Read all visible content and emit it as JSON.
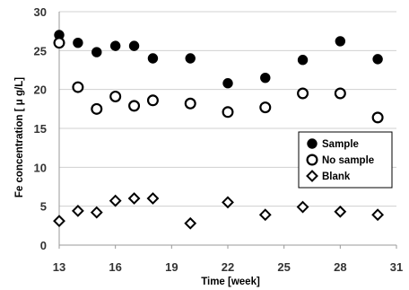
{
  "chart_data": {
    "type": "scatter",
    "xlabel": "Time [week]",
    "ylabel": "Fe concentration [ μ g/L]",
    "xlim": [
      13,
      31
    ],
    "ylim": [
      0,
      30
    ],
    "x_ticks": [
      13,
      16,
      19,
      22,
      25,
      28,
      31
    ],
    "x_tick_labels": [
      "13",
      "16",
      "19",
      "22",
      "25",
      "28",
      "31"
    ],
    "y_ticks": [
      0,
      5,
      10,
      15,
      20,
      25,
      30
    ],
    "y_tick_labels": [
      "0",
      "5",
      "10",
      "15",
      "20",
      "25",
      "30"
    ],
    "grid": "horizontal",
    "legend_position": "right",
    "series": [
      {
        "name": "Sample",
        "marker": "filled-circle",
        "color": "#000000",
        "points": [
          {
            "x": 13,
            "y": 27.0
          },
          {
            "x": 14,
            "y": 26.0
          },
          {
            "x": 15,
            "y": 24.8
          },
          {
            "x": 16,
            "y": 25.6
          },
          {
            "x": 17,
            "y": 25.6
          },
          {
            "x": 18,
            "y": 24.0
          },
          {
            "x": 20,
            "y": 24.0
          },
          {
            "x": 22,
            "y": 20.8
          },
          {
            "x": 24,
            "y": 21.5
          },
          {
            "x": 26,
            "y": 23.8
          },
          {
            "x": 28,
            "y": 26.2
          },
          {
            "x": 30,
            "y": 23.9
          }
        ]
      },
      {
        "name": "No sample",
        "marker": "open-circle",
        "color": "#000000",
        "points": [
          {
            "x": 13,
            "y": 26.0
          },
          {
            "x": 14,
            "y": 20.3
          },
          {
            "x": 15,
            "y": 17.5
          },
          {
            "x": 16,
            "y": 19.1
          },
          {
            "x": 17,
            "y": 17.9
          },
          {
            "x": 18,
            "y": 18.6
          },
          {
            "x": 20,
            "y": 18.2
          },
          {
            "x": 22,
            "y": 17.1
          },
          {
            "x": 24,
            "y": 17.7
          },
          {
            "x": 26,
            "y": 19.5
          },
          {
            "x": 28,
            "y": 19.5
          },
          {
            "x": 30,
            "y": 16.4
          }
        ]
      },
      {
        "name": "Blank",
        "marker": "open-diamond",
        "color": "#000000",
        "points": [
          {
            "x": 13,
            "y": 3.1
          },
          {
            "x": 14,
            "y": 4.4
          },
          {
            "x": 15,
            "y": 4.2
          },
          {
            "x": 16,
            "y": 5.7
          },
          {
            "x": 17,
            "y": 6.0
          },
          {
            "x": 18,
            "y": 6.0
          },
          {
            "x": 20,
            "y": 2.8
          },
          {
            "x": 22,
            "y": 5.5
          },
          {
            "x": 24,
            "y": 3.9
          },
          {
            "x": 26,
            "y": 4.9
          },
          {
            "x": 28,
            "y": 4.3
          },
          {
            "x": 30,
            "y": 3.9
          }
        ]
      }
    ]
  }
}
